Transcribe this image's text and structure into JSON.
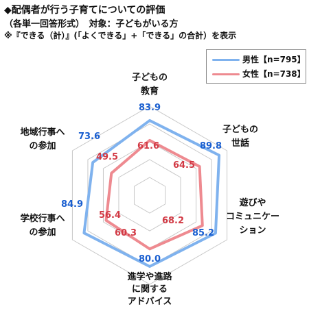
{
  "header": {
    "line1": "◆配偶者が行う子育てについての評価",
    "line2": "（各単一回答形式）　対象：子どもがいる方",
    "line3": "※『できる（計）』(「よくできる」+「できる」の合計）を表示"
  },
  "colors": {
    "male": "#7fb2ee",
    "female": "#ee8a90",
    "male_label": "#1a5fd0",
    "female_label": "#d23a45",
    "grid": "#c8c8c8"
  },
  "chart_data": {
    "type": "radar",
    "title": "配偶者が行う子育てについての評価",
    "categories": [
      [
        "子どもの",
        "教育"
      ],
      [
        "子どもの",
        "世話"
      ],
      [
        "遊びや",
        "コミュニケー",
        "ション"
      ],
      [
        "進学や進路",
        "に関する",
        "アドバイス"
      ],
      [
        "学校行事へ",
        "の参加"
      ],
      [
        "地域行事へ",
        "の参加"
      ]
    ],
    "series": [
      {
        "name": "男性【n=795】",
        "values": [
          83.9,
          89.8,
          85.2,
          80.0,
          84.9,
          73.6
        ]
      },
      {
        "name": "女性【n=738】",
        "values": [
          61.6,
          64.5,
          68.2,
          60.3,
          56.4,
          49.5
        ]
      }
    ],
    "range": [
      0,
      100
    ],
    "grid_levels": [
      20,
      40,
      60,
      80,
      100
    ],
    "legend_position": "top-right"
  }
}
